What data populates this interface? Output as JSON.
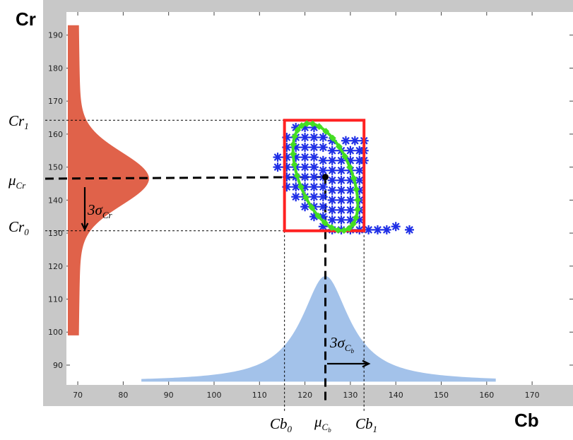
{
  "chart_data": {
    "type": "scatter",
    "title": "",
    "xlabel": "Cb",
    "ylabel": "Cr",
    "xlim": [
      67.5,
      179
    ],
    "ylim": [
      84,
      197
    ],
    "x_ticks": [
      70,
      80,
      90,
      100,
      110,
      120,
      130,
      140,
      150,
      160,
      170
    ],
    "y_ticks": [
      90,
      100,
      110,
      120,
      130,
      140,
      150,
      160,
      170,
      180,
      190
    ],
    "colors": {
      "frame": "#c8c8c8",
      "scatter": "#1f2fe6",
      "ellipse": "#44dd22",
      "box": "#ff2222",
      "cb_distribution": "#a3c2ea",
      "cr_distribution": "#e0624a",
      "guides": "#000000"
    },
    "bounding_box": {
      "cb": [
        115.5,
        133
      ],
      "cr": [
        130.7,
        164.2
      ]
    },
    "mean_point": {
      "cb": 124.5,
      "cr": 147
    },
    "cb_gaussian": {
      "mean": 124.5,
      "peak_cr": 117,
      "base_cr": 85,
      "x_range": [
        84,
        162
      ]
    },
    "cr_gaussian": {
      "mean": 146.5,
      "peak_cb": 84.5,
      "base_cb": 70,
      "y_range": [
        99,
        193
      ]
    },
    "scatter_points": [
      [
        118,
        162
      ],
      [
        120,
        162
      ],
      [
        122,
        162
      ],
      [
        116,
        159
      ],
      [
        118,
        159
      ],
      [
        120,
        159
      ],
      [
        122,
        159
      ],
      [
        124,
        159
      ],
      [
        126,
        158
      ],
      [
        129,
        158
      ],
      [
        131,
        158
      ],
      [
        133,
        158
      ],
      [
        116,
        156
      ],
      [
        118,
        156
      ],
      [
        120,
        156
      ],
      [
        122,
        156
      ],
      [
        124,
        156
      ],
      [
        126,
        155
      ],
      [
        128,
        155
      ],
      [
        130,
        155
      ],
      [
        132,
        155
      ],
      [
        133,
        155
      ],
      [
        114,
        153
      ],
      [
        116,
        153
      ],
      [
        118,
        153
      ],
      [
        120,
        153
      ],
      [
        122,
        153
      ],
      [
        124,
        152
      ],
      [
        126,
        152
      ],
      [
        128,
        152
      ],
      [
        130,
        152
      ],
      [
        132,
        152
      ],
      [
        133,
        152
      ],
      [
        114,
        150
      ],
      [
        116,
        150
      ],
      [
        118,
        150
      ],
      [
        120,
        150
      ],
      [
        122,
        150
      ],
      [
        124,
        149
      ],
      [
        126,
        149
      ],
      [
        128,
        149
      ],
      [
        130,
        149
      ],
      [
        132,
        149
      ],
      [
        116,
        147
      ],
      [
        118,
        147
      ],
      [
        120,
        147
      ],
      [
        122,
        147
      ],
      [
        124,
        147
      ],
      [
        126,
        146
      ],
      [
        128,
        146
      ],
      [
        130,
        146
      ],
      [
        132,
        146
      ],
      [
        116,
        144
      ],
      [
        118,
        144
      ],
      [
        120,
        144
      ],
      [
        122,
        144
      ],
      [
        124,
        144
      ],
      [
        126,
        143
      ],
      [
        128,
        143
      ],
      [
        130,
        143
      ],
      [
        132,
        143
      ],
      [
        118,
        141
      ],
      [
        120,
        141
      ],
      [
        122,
        141
      ],
      [
        124,
        141
      ],
      [
        126,
        140
      ],
      [
        128,
        140
      ],
      [
        130,
        140
      ],
      [
        132,
        140
      ],
      [
        120,
        138
      ],
      [
        122,
        138
      ],
      [
        124,
        138
      ],
      [
        126,
        137
      ],
      [
        128,
        137
      ],
      [
        130,
        137
      ],
      [
        132,
        137
      ],
      [
        122,
        135
      ],
      [
        124,
        135
      ],
      [
        126,
        134
      ],
      [
        128,
        134
      ],
      [
        130,
        134
      ],
      [
        132,
        134
      ],
      [
        124,
        132
      ],
      [
        126,
        131
      ],
      [
        128,
        131
      ],
      [
        130,
        131
      ],
      [
        132,
        131
      ],
      [
        134,
        131
      ],
      [
        136,
        131
      ],
      [
        138,
        131
      ],
      [
        140,
        132
      ],
      [
        143,
        131
      ]
    ],
    "ellipse": {
      "center": [
        124.5,
        147
      ],
      "rx": 5.8,
      "ry": 17.2,
      "angle_deg": 22
    },
    "annotations": {
      "cr1": {
        "label": "Cr",
        "sub": "1",
        "value": 164.2
      },
      "mu_cr": {
        "label": "μ",
        "sub": "Cr",
        "value": 146.5
      },
      "cr0": {
        "label": "Cr",
        "sub": "0",
        "value": 130.7
      },
      "sigma_cr": {
        "label": "3σ",
        "sub": "Cr"
      },
      "cb0": {
        "label": "Cb",
        "sub": "0",
        "value": 115.5
      },
      "mu_cb": {
        "label": "μ",
        "sub": "C",
        "sub2": "b",
        "value": 124.5
      },
      "cb1": {
        "label": "Cb",
        "sub": "1",
        "value": 133
      },
      "sigma_cb": {
        "label": "3σ",
        "sub": "C",
        "sub2": "b"
      }
    }
  }
}
